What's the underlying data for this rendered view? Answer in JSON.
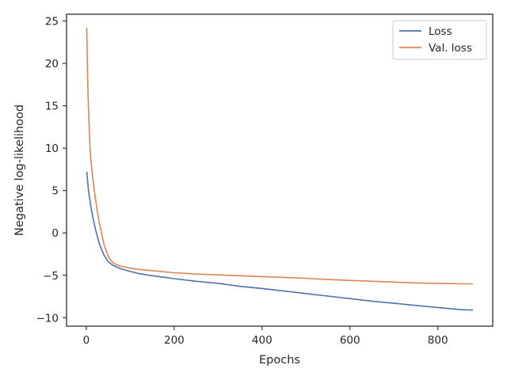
{
  "chart_data": {
    "type": "line",
    "title": "",
    "xlabel": "Epochs",
    "ylabel": "Negative log-likelihood",
    "xlim": [
      -45,
      925
    ],
    "ylim": [
      -11.0,
      25.8
    ],
    "xticks": [
      0,
      200,
      400,
      600,
      800
    ],
    "yticks": [
      -10,
      -5,
      0,
      5,
      10,
      15,
      20,
      25
    ],
    "grid": false,
    "legend_position": "top-right",
    "series": [
      {
        "name": "Loss",
        "color": "#4c72b0",
        "x": [
          1,
          5,
          10,
          15,
          20,
          25,
          30,
          40,
          50,
          60,
          70,
          80,
          100,
          120,
          150,
          180,
          200,
          250,
          300,
          350,
          400,
          450,
          500,
          550,
          600,
          650,
          700,
          750,
          800,
          850,
          880
        ],
        "values": [
          7.2,
          5.0,
          3.2,
          1.8,
          0.6,
          -0.4,
          -1.3,
          -2.6,
          -3.4,
          -3.8,
          -4.05,
          -4.25,
          -4.55,
          -4.8,
          -5.05,
          -5.25,
          -5.4,
          -5.7,
          -5.95,
          -6.3,
          -6.55,
          -6.85,
          -7.15,
          -7.45,
          -7.75,
          -8.05,
          -8.3,
          -8.55,
          -8.8,
          -9.05,
          -9.1
        ]
      },
      {
        "name": "Val. loss",
        "color": "#dd8452",
        "x": [
          1,
          3,
          5,
          8,
          10,
          15,
          20,
          25,
          30,
          40,
          50,
          60,
          70,
          80,
          100,
          120,
          150,
          180,
          200,
          250,
          300,
          350,
          400,
          450,
          500,
          550,
          600,
          650,
          700,
          750,
          800,
          850,
          880
        ],
        "values": [
          24.2,
          18.5,
          14.5,
          10.5,
          8.8,
          6.3,
          4.3,
          2.6,
          1.1,
          -1.3,
          -2.8,
          -3.5,
          -3.8,
          -3.95,
          -4.15,
          -4.3,
          -4.45,
          -4.6,
          -4.7,
          -4.85,
          -4.95,
          -5.05,
          -5.15,
          -5.25,
          -5.35,
          -5.5,
          -5.6,
          -5.7,
          -5.8,
          -5.9,
          -5.95,
          -6.0,
          -6.0
        ]
      }
    ]
  }
}
